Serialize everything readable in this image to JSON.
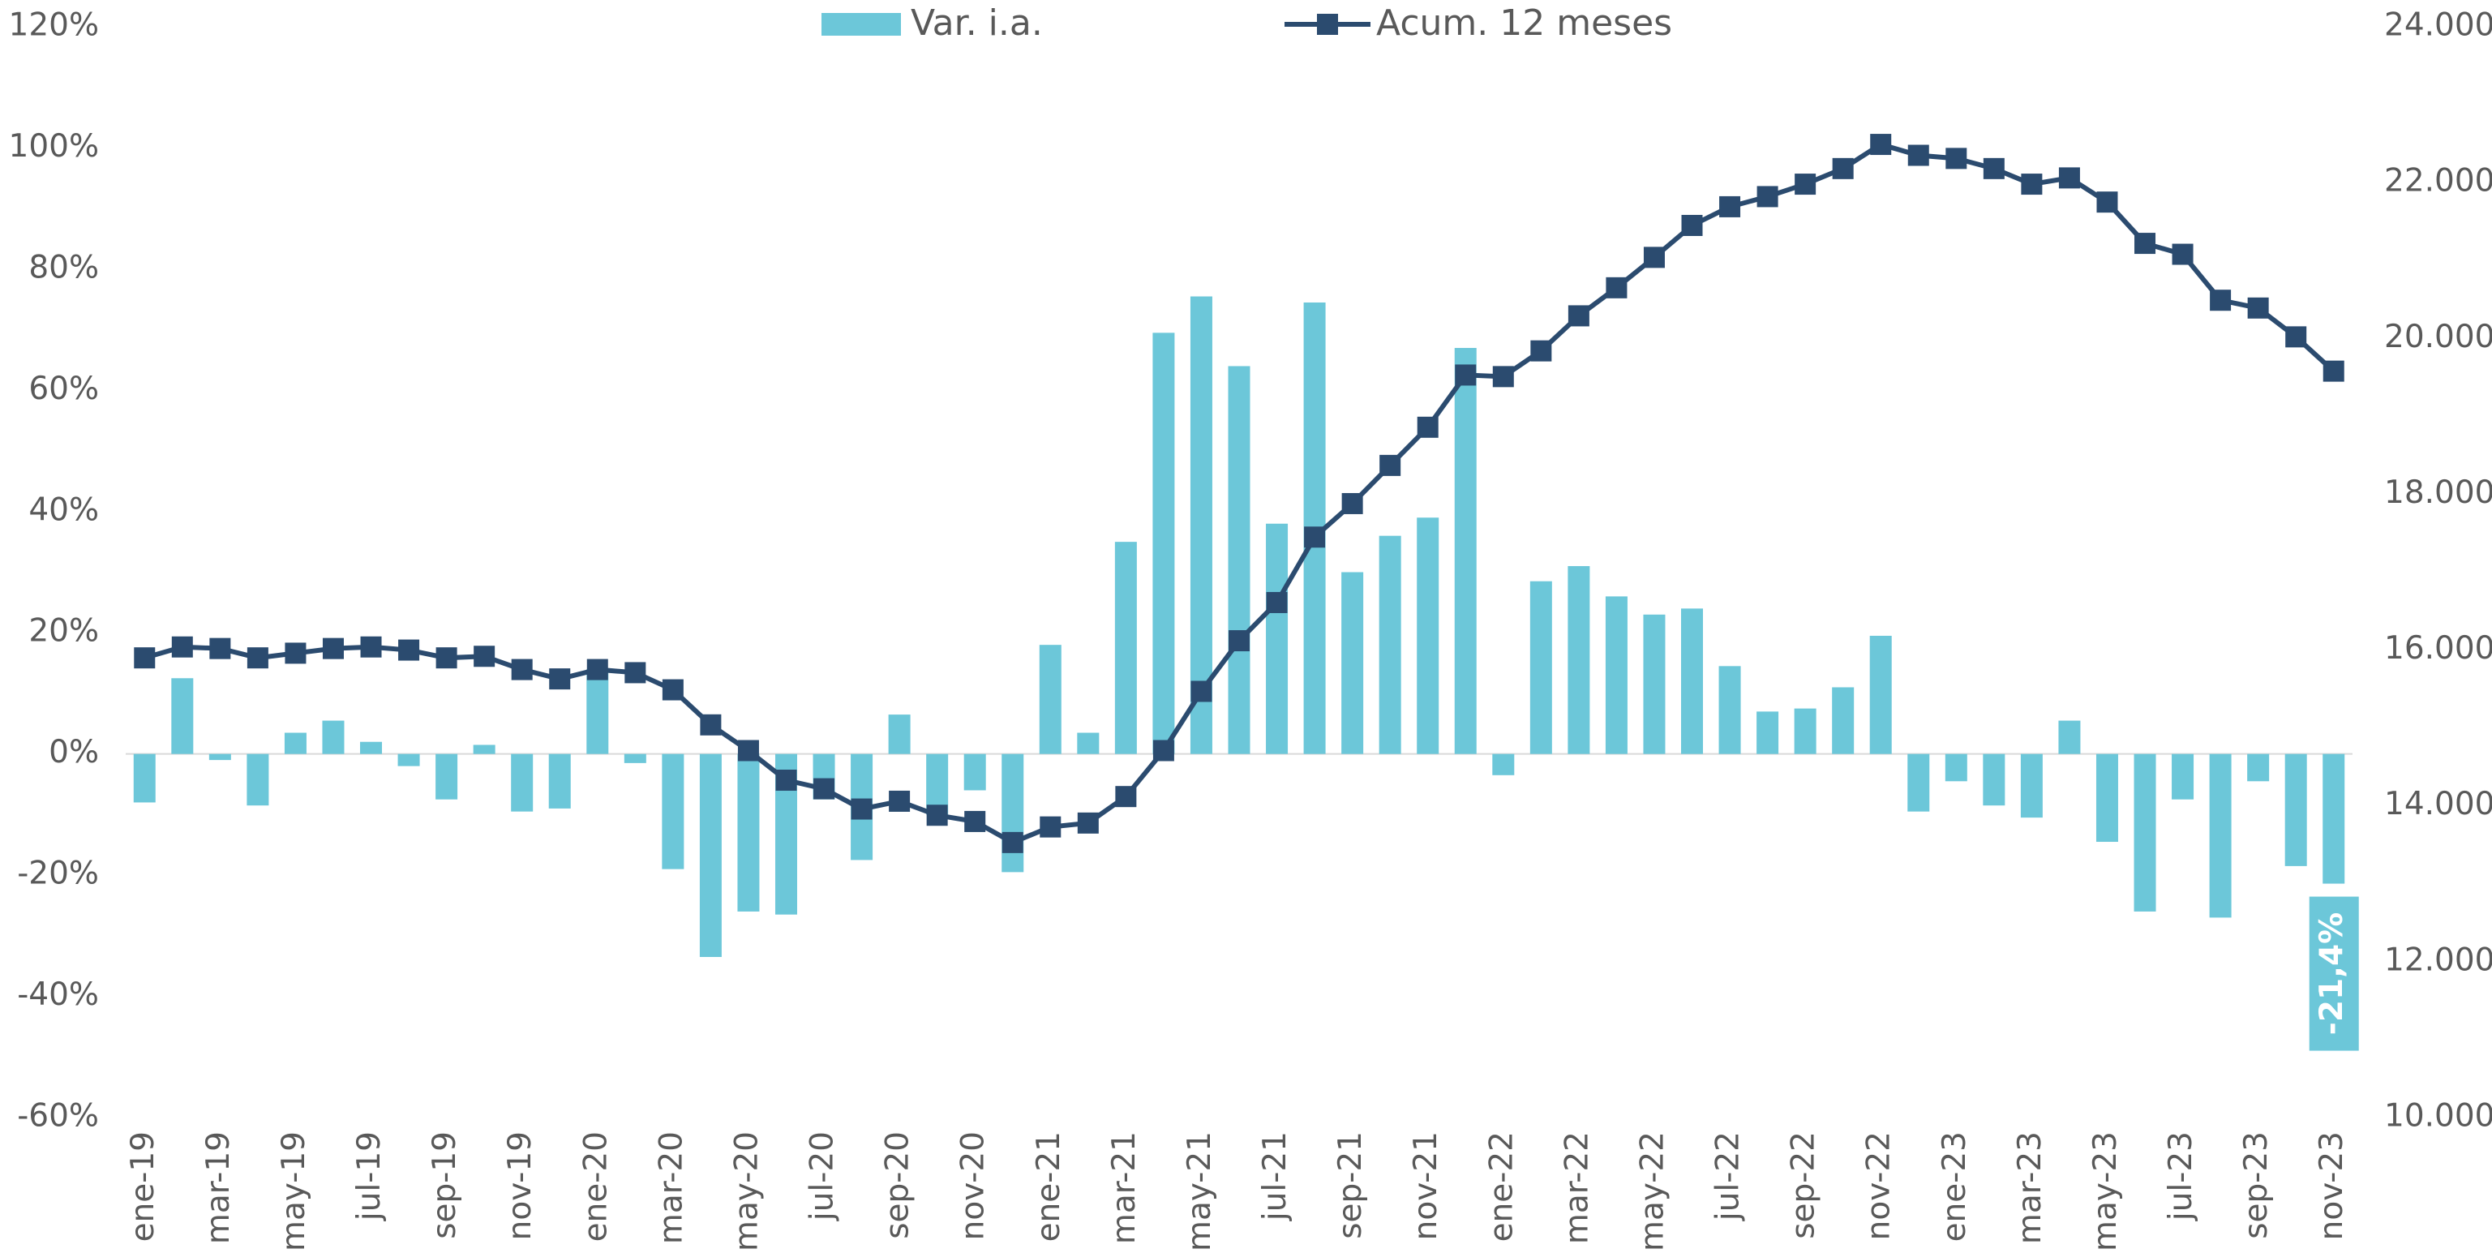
{
  "chart_data": {
    "type": "combo",
    "categories": [
      "ene-19",
      null,
      "mar-19",
      null,
      "may-19",
      null,
      "jul-19",
      null,
      "sep-19",
      null,
      "nov-19",
      null,
      "ene-20",
      null,
      "mar-20",
      null,
      "may-20",
      null,
      "jul-20",
      null,
      "sep-20",
      null,
      "nov-20",
      null,
      "ene-21",
      null,
      "mar-21",
      null,
      "may-21",
      null,
      "jul-21",
      null,
      "sep-21",
      null,
      "nov-21",
      null,
      "ene-22",
      null,
      "mar-22",
      null,
      "may-22",
      null,
      "jul-22",
      null,
      "sep-22",
      null,
      "nov-22",
      null,
      "ene-23",
      null,
      "mar-23",
      null,
      "may-23",
      null,
      "jul-23",
      null,
      "sep-23",
      null,
      "nov-23"
    ],
    "series": [
      {
        "name": "Var. i.a.",
        "type": "bar",
        "color": "#6cc7d9",
        "values": [
          -8,
          12.5,
          -1,
          -8.5,
          3.5,
          5.5,
          2,
          -2,
          -7.5,
          1.5,
          -9.5,
          -9,
          14,
          -1.5,
          -19,
          -33.5,
          -26,
          -26.5,
          -7.5,
          -17.5,
          6.5,
          -10,
          -6,
          -19.5,
          18,
          3.5,
          35,
          69.5,
          75.5,
          64,
          38,
          74.5,
          30,
          36,
          39,
          67,
          -3.5,
          28.5,
          31,
          26,
          23,
          24,
          14.5,
          7,
          7.5,
          11,
          19.5,
          -9.5,
          -4.5,
          -8.5,
          -10.5,
          5.5,
          -14.5,
          -26,
          -7.5,
          -27,
          -4.5,
          -18.5,
          -21.4
        ],
        "value_labels": [
          null,
          null,
          null,
          null,
          null,
          null,
          null,
          null,
          null,
          null,
          null,
          null,
          null,
          null,
          null,
          null,
          null,
          null,
          null,
          null,
          null,
          null,
          null,
          null,
          null,
          null,
          null,
          null,
          null,
          null,
          null,
          null,
          null,
          null,
          null,
          null,
          null,
          null,
          null,
          null,
          null,
          null,
          null,
          null,
          null,
          null,
          null,
          null,
          null,
          null,
          null,
          null,
          null,
          null,
          null,
          null,
          null,
          null,
          "-21,4%"
        ]
      },
      {
        "name": "Acum. 12 meses",
        "type": "line",
        "axis": "y2",
        "color": "#2b4b6f",
        "values": [
          15900,
          16040,
          16020,
          15900,
          15960,
          16020,
          16040,
          16000,
          15900,
          15920,
          15750,
          15630,
          15750,
          15710,
          15490,
          15040,
          14710,
          14330,
          14220,
          13960,
          14060,
          13880,
          13800,
          13530,
          13730,
          13780,
          14120,
          14710,
          15470,
          16120,
          16610,
          17450,
          17880,
          18370,
          18860,
          19530,
          19510,
          19840,
          20290,
          20650,
          21040,
          21450,
          21690,
          21820,
          21980,
          22180,
          22490,
          22350,
          22310,
          22180,
          21980,
          22060,
          21750,
          21220,
          21080,
          20490,
          20390,
          20020,
          19580
        ]
      }
    ],
    "ylim": [
      -60,
      120
    ],
    "yticks": [
      {
        "value": -60,
        "label": "-60%"
      },
      {
        "value": -40,
        "label": "-40%"
      },
      {
        "value": -20,
        "label": "-20%"
      },
      {
        "value": 0,
        "label": "0%"
      },
      {
        "value": 20,
        "label": "20%"
      },
      {
        "value": 40,
        "label": "40%"
      },
      {
        "value": 60,
        "label": "60%"
      },
      {
        "value": 80,
        "label": "80%"
      },
      {
        "value": 100,
        "label": "100%"
      },
      {
        "value": 120,
        "label": "120%"
      }
    ],
    "y2lim": [
      10000,
      24000
    ],
    "y2ticks": [
      {
        "value": 10000,
        "label": "10.000"
      },
      {
        "value": 12000,
        "label": "12.000"
      },
      {
        "value": 14000,
        "label": "14.000"
      },
      {
        "value": 16000,
        "label": "16.000"
      },
      {
        "value": 18000,
        "label": "18.000"
      },
      {
        "value": 20000,
        "label": "20.000"
      },
      {
        "value": 22000,
        "label": "22.000"
      },
      {
        "value": 24000,
        "label": "24.000"
      }
    ],
    "legend": "top"
  }
}
